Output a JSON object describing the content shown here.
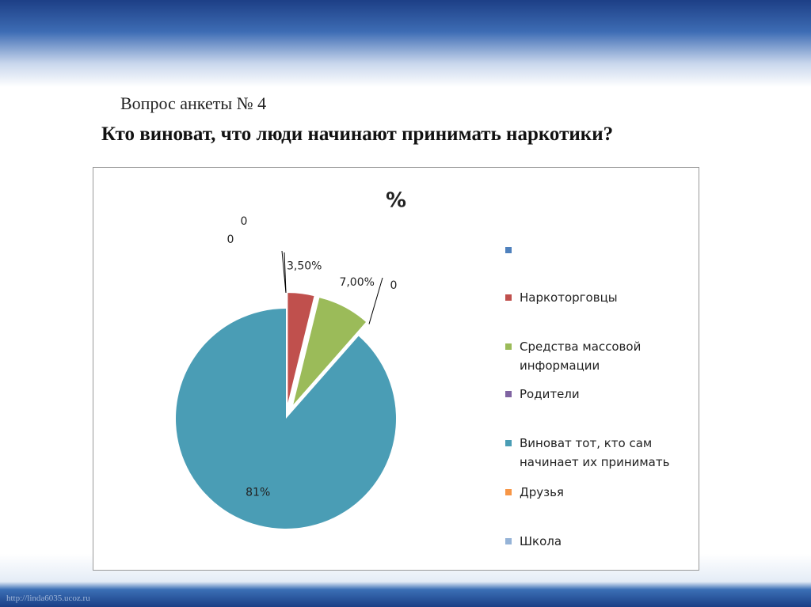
{
  "title": "Вопрос анкеты № 4",
  "subtitle": "Кто виноват, что люди начинают принимать наркотики?",
  "footer": "http://linda6035.ucoz.ru",
  "chart_data": {
    "type": "pie",
    "title": "%",
    "categories": [
      null,
      "Наркоторговцы",
      "Средства массовой информации",
      "Родители",
      "Виноват тот, кто сам начинает их принимать",
      "Друзья",
      "Школа"
    ],
    "values": [
      0,
      3.5,
      7,
      0,
      81,
      null,
      0
    ],
    "value_labels": [
      "0",
      "3,50%",
      "7,00%",
      "0",
      "81%",
      null,
      "0"
    ],
    "colors": [
      "#4f81bd",
      "#c0504d",
      "#9bbb59",
      "#8064a2",
      "#4a9db5",
      "#f79646",
      "#95b3d7"
    ],
    "legend": "right"
  }
}
